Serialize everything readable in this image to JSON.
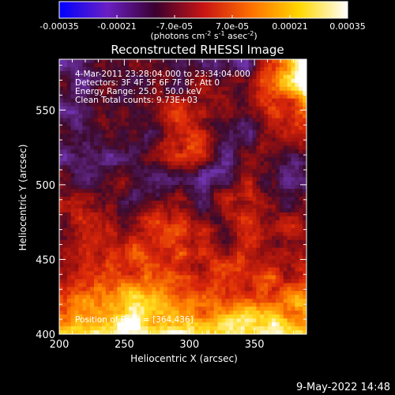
{
  "chart_data": {
    "type": "heatmap",
    "title": "Reconstructed RHESSI Image",
    "xlabel": "Heliocentric X (arcsec)",
    "ylabel": "Heliocentric Y (arcsec)",
    "xlim": [
      200,
      390
    ],
    "ylim": [
      400,
      584
    ],
    "x_ticks": [
      200,
      250,
      300,
      350
    ],
    "y_ticks": [
      400,
      450,
      500,
      550
    ],
    "colorbar": {
      "range": [
        -0.00035,
        0.00035
      ],
      "tick_values": [
        -0.00035,
        -0.00021,
        -7e-05,
        7e-05,
        0.00021,
        0.00035
      ],
      "tick_labels": [
        "-0.00035",
        "-0.00021",
        "-7.0e-05",
        "7.0e-05",
        "0.00021",
        "0.00035"
      ],
      "unit_prefix": "(photons cm",
      "unit_sup1": "-2",
      "unit_mid": " s",
      "unit_sup2": "-1",
      "unit_mid2": " asec",
      "unit_sup3": "-2",
      "unit_suffix": ")",
      "colors": [
        "#0000ff",
        "#6a1fc4",
        "#3a0030",
        "#c81414",
        "#ff7000",
        "#ffd800",
        "#ffffff"
      ]
    },
    "annotations": [
      "4-Mar-2011 23:28:04.000 to 23:34:04.000",
      "Detectors: 3F 4F 5F 6F 7F 8F, Att 0",
      "Energy Range: 25.0 - 50.0 keV",
      "Clean     Total counts: 9.73E+03"
    ],
    "peak_label": "Position of Peak = [364,436]",
    "timestamp": "9-May-2022 14:48"
  }
}
